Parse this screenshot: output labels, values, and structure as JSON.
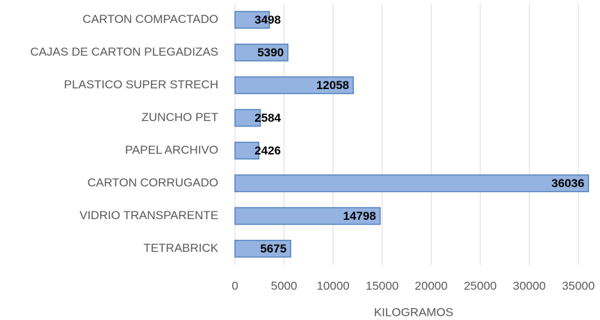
{
  "chart_data": {
    "type": "barh",
    "x_label": "KILOGRAMOS",
    "categories": [
      "CARTON COMPACTADO",
      "CAJAS DE CARTON PLEGADIZAS",
      "PLASTICO SUPER STRECH",
      "ZUNCHO PET",
      "PAPEL ARCHIVO",
      "CARTON CORRUGADO",
      "VIDRIO TRANSPARENTE",
      "TETRABRICK"
    ],
    "values": [
      3498,
      5390,
      12058,
      2584,
      2426,
      36036,
      14798,
      5675
    ],
    "color": "#95b3e0",
    "edge_color": "#4f81bd",
    "xlim": [
      0,
      36500
    ],
    "xticks": [
      0,
      5000,
      10000,
      15000,
      20000,
      25000,
      30000,
      35000
    ],
    "grid": true
  }
}
